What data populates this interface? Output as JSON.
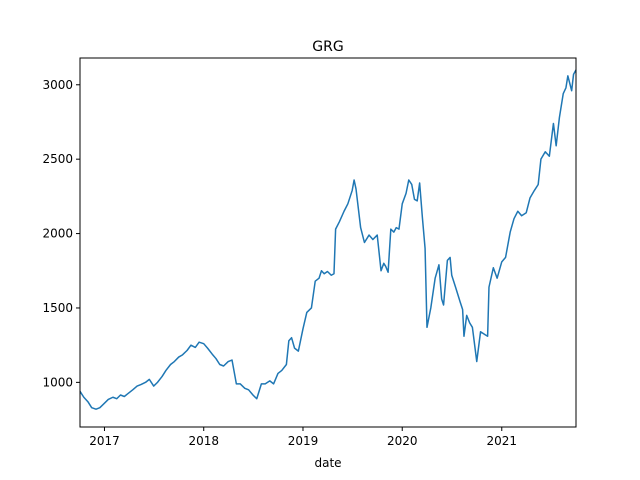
{
  "chart_data": {
    "type": "line",
    "title": "GRG",
    "xlabel": "date",
    "ylabel": "",
    "x_range": [
      "2016-10-03",
      "2021-10-01"
    ],
    "ylim": [
      700,
      3180
    ],
    "x_ticks": [
      {
        "date": "2017-01-01",
        "label": "2017"
      },
      {
        "date": "2018-01-01",
        "label": "2018"
      },
      {
        "date": "2019-01-01",
        "label": "2019"
      },
      {
        "date": "2020-01-01",
        "label": "2020"
      },
      {
        "date": "2021-01-01",
        "label": "2021"
      }
    ],
    "y_ticks": [
      1000,
      1500,
      2000,
      2500,
      3000
    ],
    "grid": false,
    "legend": "none",
    "series": [
      {
        "color": "#1f77b4",
        "points": [
          [
            "2016-10-03",
            940
          ],
          [
            "2016-10-17",
            900
          ],
          [
            "2016-11-01",
            870
          ],
          [
            "2016-11-15",
            830
          ],
          [
            "2016-12-01",
            820
          ],
          [
            "2016-12-15",
            830
          ],
          [
            "2017-01-01",
            860
          ],
          [
            "2017-01-15",
            885
          ],
          [
            "2017-02-01",
            900
          ],
          [
            "2017-02-15",
            890
          ],
          [
            "2017-03-01",
            915
          ],
          [
            "2017-03-15",
            905
          ],
          [
            "2017-04-01",
            930
          ],
          [
            "2017-04-15",
            950
          ],
          [
            "2017-05-01",
            975
          ],
          [
            "2017-05-15",
            985
          ],
          [
            "2017-06-01",
            1000
          ],
          [
            "2017-06-15",
            1020
          ],
          [
            "2017-07-01",
            975
          ],
          [
            "2017-07-15",
            1000
          ],
          [
            "2017-08-01",
            1040
          ],
          [
            "2017-08-15",
            1080
          ],
          [
            "2017-09-01",
            1120
          ],
          [
            "2017-09-15",
            1140
          ],
          [
            "2017-10-01",
            1170
          ],
          [
            "2017-10-15",
            1185
          ],
          [
            "2017-11-01",
            1215
          ],
          [
            "2017-11-15",
            1250
          ],
          [
            "2017-12-01",
            1235
          ],
          [
            "2017-12-15",
            1270
          ],
          [
            "2018-01-01",
            1260
          ],
          [
            "2018-01-15",
            1230
          ],
          [
            "2018-02-01",
            1190
          ],
          [
            "2018-02-15",
            1160
          ],
          [
            "2018-03-01",
            1120
          ],
          [
            "2018-03-15",
            1110
          ],
          [
            "2018-04-01",
            1140
          ],
          [
            "2018-04-15",
            1150
          ],
          [
            "2018-04-25",
            1050
          ],
          [
            "2018-05-01",
            990
          ],
          [
            "2018-05-15",
            990
          ],
          [
            "2018-06-01",
            960
          ],
          [
            "2018-06-15",
            950
          ],
          [
            "2018-07-01",
            915
          ],
          [
            "2018-07-15",
            890
          ],
          [
            "2018-08-01",
            990
          ],
          [
            "2018-08-15",
            990
          ],
          [
            "2018-09-01",
            1010
          ],
          [
            "2018-09-15",
            990
          ],
          [
            "2018-10-01",
            1060
          ],
          [
            "2018-10-15",
            1080
          ],
          [
            "2018-11-01",
            1120
          ],
          [
            "2018-11-10",
            1280
          ],
          [
            "2018-11-20",
            1300
          ],
          [
            "2018-12-01",
            1230
          ],
          [
            "2018-12-15",
            1210
          ],
          [
            "2019-01-01",
            1360
          ],
          [
            "2019-01-15",
            1470
          ],
          [
            "2019-02-01",
            1500
          ],
          [
            "2019-02-15",
            1680
          ],
          [
            "2019-03-01",
            1700
          ],
          [
            "2019-03-10",
            1750
          ],
          [
            "2019-03-20",
            1730
          ],
          [
            "2019-04-01",
            1745
          ],
          [
            "2019-04-15",
            1720
          ],
          [
            "2019-04-25",
            1730
          ],
          [
            "2019-05-01",
            2030
          ],
          [
            "2019-05-15",
            2080
          ],
          [
            "2019-06-01",
            2150
          ],
          [
            "2019-06-15",
            2200
          ],
          [
            "2019-07-01",
            2290
          ],
          [
            "2019-07-08",
            2360
          ],
          [
            "2019-07-15",
            2300
          ],
          [
            "2019-08-01",
            2040
          ],
          [
            "2019-08-15",
            1940
          ],
          [
            "2019-09-01",
            1990
          ],
          [
            "2019-09-15",
            1960
          ],
          [
            "2019-10-01",
            1990
          ],
          [
            "2019-10-15",
            1750
          ],
          [
            "2019-10-25",
            1800
          ],
          [
            "2019-11-01",
            1780
          ],
          [
            "2019-11-10",
            1740
          ],
          [
            "2019-11-20",
            2030
          ],
          [
            "2019-12-01",
            2010
          ],
          [
            "2019-12-10",
            2040
          ],
          [
            "2019-12-20",
            2030
          ],
          [
            "2020-01-01",
            2200
          ],
          [
            "2020-01-15",
            2270
          ],
          [
            "2020-01-25",
            2360
          ],
          [
            "2020-02-05",
            2330
          ],
          [
            "2020-02-15",
            2230
          ],
          [
            "2020-02-25",
            2220
          ],
          [
            "2020-03-05",
            2340
          ],
          [
            "2020-03-15",
            2110
          ],
          [
            "2020-03-25",
            1900
          ],
          [
            "2020-04-01",
            1370
          ],
          [
            "2020-04-15",
            1500
          ],
          [
            "2020-05-01",
            1700
          ],
          [
            "2020-05-15",
            1790
          ],
          [
            "2020-05-25",
            1560
          ],
          [
            "2020-06-01",
            1520
          ],
          [
            "2020-06-15",
            1820
          ],
          [
            "2020-06-25",
            1840
          ],
          [
            "2020-07-01",
            1720
          ],
          [
            "2020-07-15",
            1640
          ],
          [
            "2020-08-01",
            1540
          ],
          [
            "2020-08-10",
            1490
          ],
          [
            "2020-08-15",
            1310
          ],
          [
            "2020-08-25",
            1450
          ],
          [
            "2020-09-05",
            1400
          ],
          [
            "2020-09-15",
            1370
          ],
          [
            "2020-10-01",
            1140
          ],
          [
            "2020-10-15",
            1340
          ],
          [
            "2020-11-01",
            1320
          ],
          [
            "2020-11-10",
            1310
          ],
          [
            "2020-11-15",
            1640
          ],
          [
            "2020-12-01",
            1770
          ],
          [
            "2020-12-15",
            1700
          ],
          [
            "2021-01-01",
            1810
          ],
          [
            "2021-01-15",
            1840
          ],
          [
            "2021-02-01",
            2010
          ],
          [
            "2021-02-15",
            2100
          ],
          [
            "2021-03-01",
            2150
          ],
          [
            "2021-03-15",
            2120
          ],
          [
            "2021-04-01",
            2140
          ],
          [
            "2021-04-15",
            2240
          ],
          [
            "2021-05-01",
            2290
          ],
          [
            "2021-05-15",
            2330
          ],
          [
            "2021-05-25",
            2500
          ],
          [
            "2021-06-10",
            2550
          ],
          [
            "2021-06-25",
            2520
          ],
          [
            "2021-07-10",
            2740
          ],
          [
            "2021-07-20",
            2590
          ],
          [
            "2021-08-01",
            2780
          ],
          [
            "2021-08-15",
            2940
          ],
          [
            "2021-08-25",
            2980
          ],
          [
            "2021-09-01",
            3060
          ],
          [
            "2021-09-15",
            2960
          ],
          [
            "2021-09-22",
            3070
          ],
          [
            "2021-10-01",
            3100
          ]
        ]
      }
    ]
  }
}
